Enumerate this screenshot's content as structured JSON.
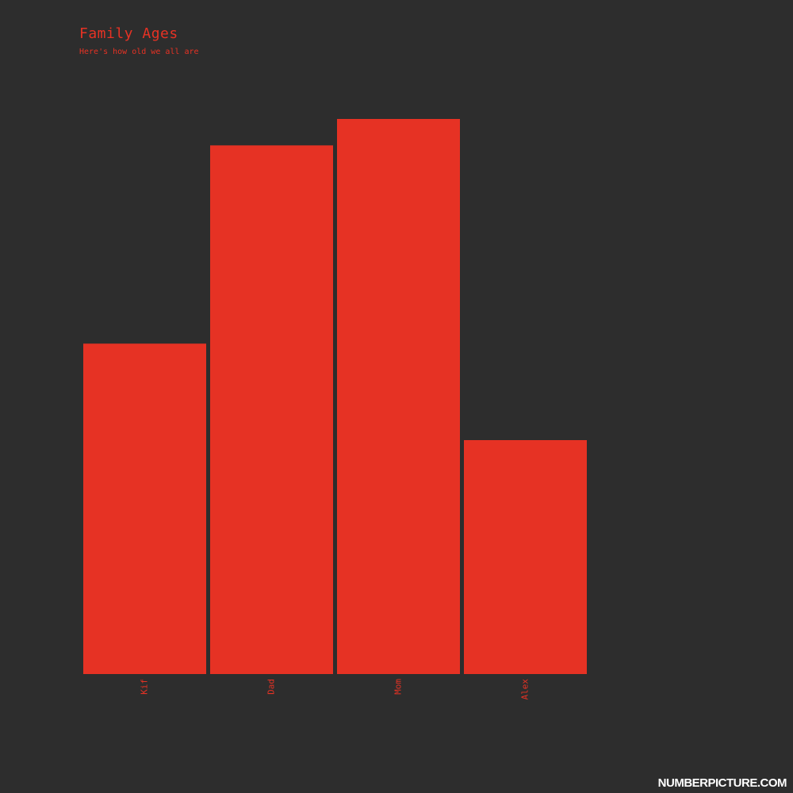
{
  "title": "Family Ages",
  "subtitle": "Here's how old we all are",
  "watermark": "NUMBERPICTURE.COM",
  "colors": {
    "background": "#2d2d2d",
    "bar": "#e63224",
    "label": "#e63224",
    "watermark": "#ffffff"
  },
  "chart_data": {
    "type": "bar",
    "categories": [
      "Kif",
      "Dad",
      "Mom",
      "Alex"
    ],
    "values": [
      25,
      40,
      42,
      17.7
    ],
    "ylim": [
      0,
      42
    ],
    "grid": false,
    "legend": "none"
  }
}
